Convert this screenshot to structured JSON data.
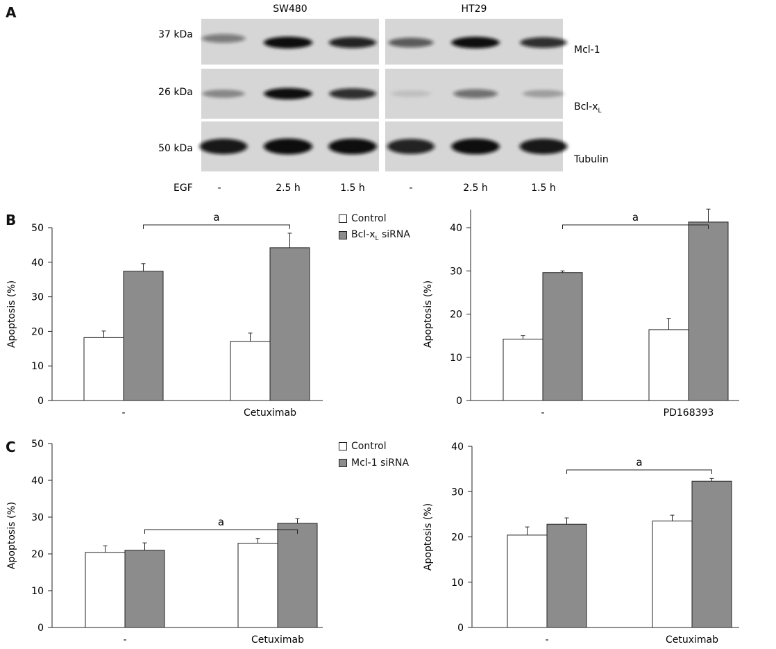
{
  "colors": {
    "control": "#ffffff",
    "treated": "#8c8c8c",
    "axis": "#222222",
    "blot_bg": "#d6d6d6",
    "band": "#111111"
  },
  "panels": {
    "A": "A",
    "B": "B",
    "C": "C"
  },
  "blot": {
    "cell_lines": [
      "SW480",
      "HT29"
    ],
    "kda": [
      "37 kDa",
      "26 kDa",
      "50 kDa"
    ],
    "proteins": {
      "mcl1": "Mcl-1",
      "bclxl_main": "Bcl-x",
      "bclxl_sub": "L",
      "tubulin": "Tubulin"
    },
    "egf_label": "EGF",
    "lanes": [
      "-",
      "2.5 h",
      "1.5 h",
      "-",
      "2.5 h",
      "1.5 h"
    ],
    "band_intensity": {
      "mcl1": [
        0.45,
        1.0,
        0.85,
        0.6,
        0.95,
        0.8
      ],
      "bclxl": [
        0.35,
        0.95,
        0.8,
        0.1,
        0.5,
        0.25
      ],
      "tubulin": [
        0.9,
        1.0,
        0.95,
        0.85,
        0.95,
        0.9
      ]
    }
  },
  "legend_b": {
    "control": "Control",
    "treated_main": "Bcl-x",
    "treated_sub": "L",
    "treated_tail": " siRNA"
  },
  "legend_c": {
    "control": "Control",
    "treated": "Mcl-1 siRNA"
  },
  "chart_data": [
    {
      "id": "B-left",
      "type": "bar",
      "ylabel": "Apoptosis (%)",
      "ylim": [
        0,
        50
      ],
      "yticks": [
        0,
        10,
        20,
        30,
        40,
        50
      ],
      "categories": [
        "-",
        "Cetuximab"
      ],
      "series": [
        {
          "values": [
            18.2,
            17.1
          ],
          "errors": [
            1.9,
            2.4
          ]
        },
        {
          "values": [
            37.4,
            44.2
          ],
          "errors": [
            2.2,
            4.2
          ]
        }
      ],
      "significance": {
        "from": 0,
        "to": 1,
        "label": "a"
      }
    },
    {
      "id": "B-right",
      "type": "bar",
      "ylabel": "Apoptosis (%)",
      "ylim": [
        0,
        45
      ],
      "yticks": [
        0,
        10,
        20,
        30,
        40
      ],
      "categories": [
        "-",
        "PD168393"
      ],
      "series": [
        {
          "values": [
            14.2,
            16.4
          ],
          "errors": [
            0.8,
            2.6
          ]
        },
        {
          "values": [
            29.6,
            41.3
          ],
          "errors": [
            0.4,
            3.0
          ]
        }
      ],
      "significance": {
        "from": 0,
        "to": 1,
        "label": "a"
      }
    },
    {
      "id": "C-left",
      "type": "bar",
      "ylabel": "Apoptosis (%)",
      "ylim": [
        0,
        50
      ],
      "yticks": [
        0,
        10,
        20,
        30,
        40,
        50
      ],
      "categories": [
        "-",
        "Cetuximab"
      ],
      "series": [
        {
          "values": [
            20.4,
            22.9
          ],
          "errors": [
            1.8,
            1.3
          ]
        },
        {
          "values": [
            21.0,
            28.3
          ],
          "errors": [
            2.0,
            1.3
          ]
        }
      ],
      "significance": {
        "from": 0,
        "to": 1,
        "label": "a"
      }
    },
    {
      "id": "C-right",
      "type": "bar",
      "ylabel": "Apoptosis (%)",
      "ylim": [
        0,
        40
      ],
      "yticks": [
        0,
        10,
        20,
        30,
        40
      ],
      "categories": [
        "-",
        "Cetuximab"
      ],
      "series": [
        {
          "values": [
            20.4,
            23.5
          ],
          "errors": [
            1.8,
            1.3
          ]
        },
        {
          "values": [
            22.8,
            32.3
          ],
          "errors": [
            1.4,
            0.6
          ]
        }
      ],
      "significance": {
        "from": 0,
        "to": 1,
        "label": "a"
      }
    }
  ]
}
